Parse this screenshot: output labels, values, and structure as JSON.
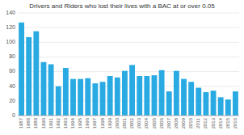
{
  "chart_data": {
    "type": "bar",
    "title": "Drivers and Riders who lost their lives with a BAC at or over 0.05",
    "categories": [
      "1987",
      "1988",
      "1989",
      "1990",
      "1991",
      "1992",
      "1993",
      "1994",
      "1995",
      "1996",
      "1997",
      "1998",
      "1999",
      "2000",
      "2001",
      "2002",
      "2003",
      "2004",
      "2005",
      "2006",
      "2007",
      "2008",
      "2009",
      "2010",
      "2011",
      "2012",
      "2013",
      "2014",
      "2015",
      "2016"
    ],
    "values": [
      127,
      107,
      115,
      73,
      70,
      40,
      65,
      50,
      50,
      51,
      44,
      46,
      54,
      52,
      61,
      69,
      54,
      54,
      55,
      62,
      33,
      61,
      50,
      46,
      38,
      32,
      34,
      25,
      22,
      33
    ],
    "color": "#29aae2",
    "ylim": [
      0,
      140
    ],
    "yticks": [
      0,
      20,
      40,
      60,
      80,
      100,
      120,
      140
    ],
    "grid": true
  }
}
